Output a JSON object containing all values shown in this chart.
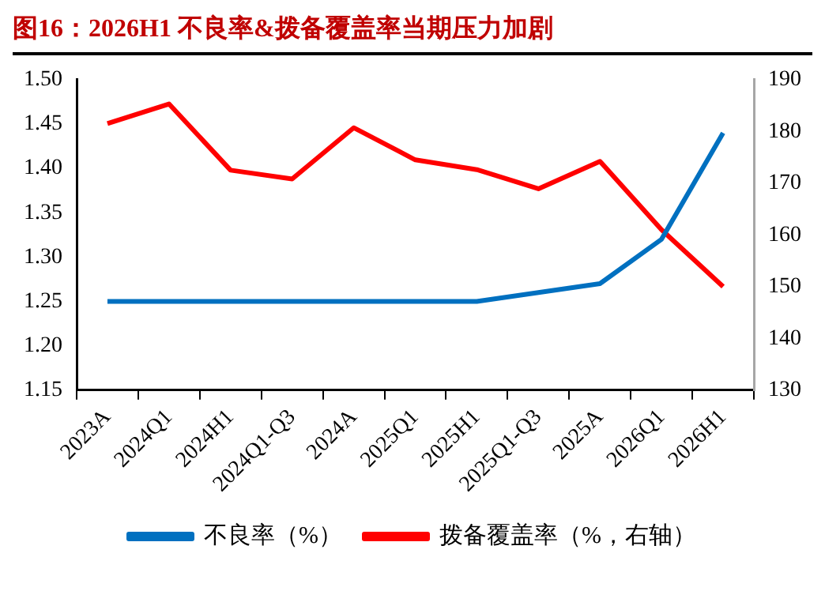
{
  "chart_data": {
    "type": "line",
    "title": "图16：2026H1 不良率&拨备覆盖率当期压力加剧",
    "categories": [
      "2023A",
      "2024Q1",
      "2024H1",
      "2024Q1-Q3",
      "2024A",
      "2025Q1",
      "2025H1",
      "2025Q1-Q3",
      "2025A",
      "2026Q1",
      "2026H1"
    ],
    "series": [
      {
        "name": "不良率（%）",
        "color": "#0070c0",
        "values": [
          1.25,
          1.25,
          1.25,
          1.25,
          1.25,
          1.25,
          1.25,
          1.26,
          1.27,
          1.32,
          1.44
        ]
      },
      {
        "name": "拨备覆盖率（%，右轴）",
        "color": "#ff0000",
        "axis": "y2",
        "values": [
          181.5,
          185.3,
          172.5,
          170.8,
          180.7,
          174.5,
          172.6,
          168.9,
          174.2,
          161,
          150
        ]
      }
    ],
    "ylim": [
      1.15,
      1.5
    ],
    "yticks": [
      1.15,
      {
        "value": 1.2,
        "label": "1.20"
      },
      1.25,
      {
        "value": 1.3,
        "label": "1.30"
      },
      1.35,
      {
        "value": 1.4,
        "label": "1.40"
      },
      1.45,
      {
        "value": 1.5,
        "label": "1.50"
      }
    ],
    "y2lim": [
      130,
      190
    ],
    "y2ticks": [
      130,
      140,
      150,
      160,
      170,
      180,
      190
    ],
    "grid": false,
    "legend": "bottom",
    "marker": "none"
  }
}
